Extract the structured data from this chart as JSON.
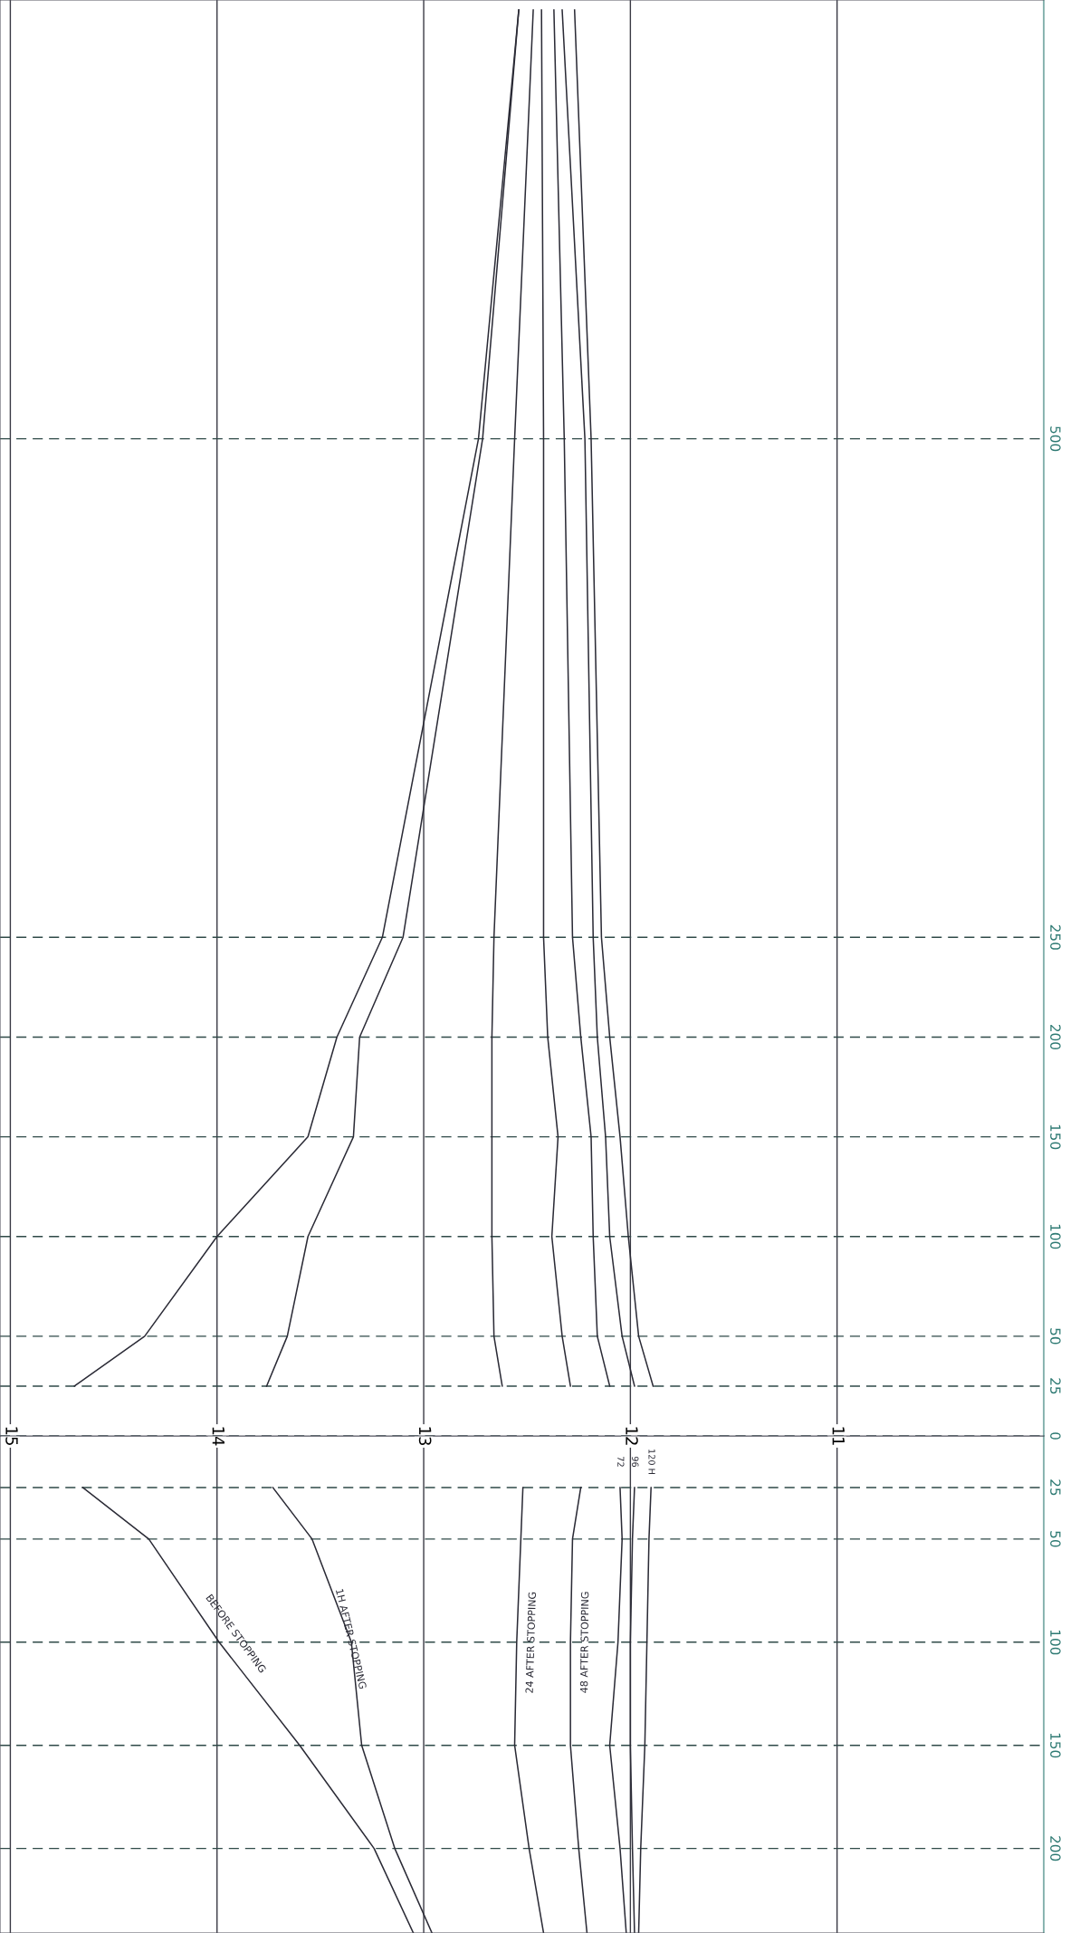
{
  "chart_data": [
    {
      "type": "line",
      "xlim": [
        15.05,
        10
      ],
      "xticks": [
        15,
        14,
        13,
        12,
        11
      ],
      "ylim": [
        0,
        720
      ],
      "yticks": [
        0,
        25,
        50,
        100,
        150,
        200,
        250,
        500
      ],
      "grid": true,
      "marker": "none",
      "line_style": "solid",
      "series": [
        {
          "color": "#2b2b36",
          "x": [
            14.69,
            14.35,
            14.0,
            13.56,
            13.42,
            13.2,
            12.735,
            12.54
          ],
          "values": [
            25,
            50,
            100,
            150,
            200,
            250,
            500,
            715
          ]
        },
        {
          "color": "#2b2b36",
          "x": [
            13.76,
            13.66,
            13.56,
            13.34,
            13.31,
            13.1,
            12.715,
            12.54
          ],
          "values": [
            25,
            50,
            100,
            150,
            200,
            250,
            500,
            715
          ]
        },
        {
          "color": "#2b2b36",
          "x": [
            12.62,
            12.66,
            12.67,
            12.67,
            12.67,
            12.66,
            12.56,
            12.47
          ],
          "values": [
            25,
            50,
            100,
            150,
            200,
            250,
            500,
            715
          ]
        },
        {
          "color": "#2b2b36",
          "x": [
            12.29,
            12.33,
            12.38,
            12.35,
            12.4,
            12.42,
            12.42,
            12.43
          ],
          "values": [
            25,
            50,
            100,
            150,
            200,
            250,
            500,
            715
          ]
        },
        {
          "color": "#2b2b36",
          "x": [
            12.1,
            12.16,
            12.18,
            12.19,
            12.24,
            12.28,
            12.32,
            12.37
          ],
          "values": [
            25,
            50,
            100,
            150,
            200,
            250,
            500,
            715
          ]
        },
        {
          "color": "#2b2b36",
          "x": [
            11.98,
            12.04,
            12.1,
            12.12,
            12.16,
            12.18,
            12.22,
            12.33
          ],
          "values": [
            25,
            50,
            100,
            150,
            200,
            250,
            500,
            715
          ]
        },
        {
          "color": "#2b2b36",
          "x": [
            11.89,
            11.96,
            12.01,
            12.05,
            12.1,
            12.14,
            12.19,
            12.27
          ],
          "values": [
            25,
            50,
            100,
            150,
            200,
            250,
            500,
            715
          ]
        }
      ]
    },
    {
      "type": "line",
      "xlim": [
        15.05,
        10
      ],
      "xticks": [
        15,
        14,
        13,
        12,
        11
      ],
      "ylim": [
        241,
        0
      ],
      "yticks": [
        25,
        50,
        100,
        150,
        200
      ],
      "grid": true,
      "marker": "none",
      "line_style": "solid",
      "tick_labels": "y",
      "series": [
        {
          "name": "BEFORE STOPPING",
          "color": "#2b2b36",
          "x": [
            14.65,
            14.33,
            13.99,
            13.6,
            13.24,
            13.05
          ],
          "values": [
            25,
            50,
            100,
            150,
            200,
            241
          ]
        },
        {
          "name": "1H AFTER STOPPING",
          "color": "#2b2b36",
          "x": [
            13.73,
            13.54,
            13.35,
            13.3,
            13.14,
            12.96
          ],
          "values": [
            25,
            50,
            100,
            150,
            200,
            241
          ]
        },
        {
          "name": "24 AFTER STOPPING",
          "color": "#2b2b36",
          "x": [
            12.52,
            12.53,
            12.55,
            12.56,
            12.49,
            12.42
          ],
          "values": [
            25,
            50,
            100,
            150,
            200,
            241
          ]
        },
        {
          "name": "48 AFTER STOPPING",
          "color": "#2b2b36",
          "x": [
            12.24,
            12.28,
            12.29,
            12.29,
            12.25,
            12.21
          ],
          "values": [
            25,
            50,
            100,
            150,
            200,
            241
          ]
        },
        {
          "name": "72",
          "color": "#2b2b36",
          "x": [
            12.05,
            12.04,
            12.06,
            12.1,
            12.05,
            12.02
          ],
          "values": [
            25,
            50,
            100,
            150,
            200,
            241
          ]
        },
        {
          "name": "96",
          "color": "#2b2b36",
          "x": [
            11.98,
            11.99,
            12.0,
            12.0,
            11.99,
            11.98
          ],
          "values": [
            25,
            50,
            100,
            150,
            200,
            241
          ]
        },
        {
          "name": "120 H",
          "color": "#2b2b36",
          "x": [
            11.9,
            11.91,
            11.92,
            11.93,
            11.95,
            11.96
          ],
          "values": [
            25,
            50,
            100,
            150,
            200,
            241
          ]
        }
      ]
    }
  ]
}
